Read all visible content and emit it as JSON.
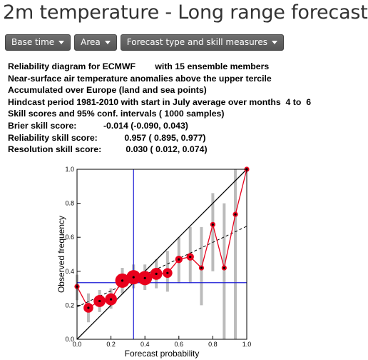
{
  "page": {
    "title": "2m temperature - Long range forecast"
  },
  "toolbar": {
    "items": [
      {
        "label": "Base time"
      },
      {
        "label": "Area"
      },
      {
        "label": "Forecast type and skill measures"
      }
    ]
  },
  "info": {
    "lines": [
      "Reliability diagram for ECMWF        with 15 ensemble members",
      "Near-surface air temperature anomalies above the upper tercile",
      "Accumulated over Europe (land and sea points)",
      "Hindcast period 1981-2010 with start in July average over months  4 to  6",
      "Skill scores and 95% conf. intervals ( 1000 samples)",
      "Brier skill score:           -0.014 (-0.090, 0.043)",
      "Reliability skill score:           0.957 ( 0.895, 0.977)",
      "Resolution skill score:          0.030 ( 0.012, 0.074)"
    ]
  },
  "chart_data": {
    "type": "scatter",
    "xlabel": "Forecast probability",
    "ylabel": "Observed frequency",
    "xlim": [
      0,
      1
    ],
    "ylim": [
      0,
      1
    ],
    "xticks": [
      "0.0",
      "0.2",
      "0.4",
      "0.6",
      "0.8",
      "1.0"
    ],
    "yticks": [
      "0.0",
      "0.2",
      "0.4",
      "0.6",
      "0.8",
      "1.0"
    ],
    "climatology": 0.333,
    "points": [
      {
        "x": 0.0,
        "y": 0.31,
        "lo": 0.23,
        "hi": 0.38,
        "n": 1
      },
      {
        "x": 0.067,
        "y": 0.185,
        "lo": 0.1,
        "hi": 0.27,
        "n": 3
      },
      {
        "x": 0.133,
        "y": 0.225,
        "lo": 0.16,
        "hi": 0.29,
        "n": 4
      },
      {
        "x": 0.2,
        "y": 0.235,
        "lo": 0.18,
        "hi": 0.3,
        "n": 4
      },
      {
        "x": 0.267,
        "y": 0.345,
        "lo": 0.27,
        "hi": 0.42,
        "n": 5
      },
      {
        "x": 0.333,
        "y": 0.365,
        "lo": 0.3,
        "hi": 0.44,
        "n": 5
      },
      {
        "x": 0.4,
        "y": 0.36,
        "lo": 0.29,
        "hi": 0.44,
        "n": 5
      },
      {
        "x": 0.467,
        "y": 0.385,
        "lo": 0.3,
        "hi": 0.47,
        "n": 4
      },
      {
        "x": 0.533,
        "y": 0.39,
        "lo": 0.28,
        "hi": 0.52,
        "n": 3
      },
      {
        "x": 0.6,
        "y": 0.47,
        "lo": 0.33,
        "hi": 0.6,
        "n": 2
      },
      {
        "x": 0.667,
        "y": 0.485,
        "lo": 0.33,
        "hi": 0.66,
        "n": 2
      },
      {
        "x": 0.733,
        "y": 0.42,
        "lo": 0.2,
        "hi": 0.66,
        "n": 1
      },
      {
        "x": 0.8,
        "y": 0.675,
        "lo": 0.4,
        "hi": 0.86,
        "n": 1
      },
      {
        "x": 0.867,
        "y": 0.42,
        "lo": 0.0,
        "hi": 0.8,
        "n": 1
      },
      {
        "x": 0.933,
        "y": 0.735,
        "lo": 0.0,
        "hi": 1.0,
        "n": 1
      },
      {
        "x": 1.0,
        "y": 1.0,
        "lo": 1.0,
        "hi": 1.0,
        "n": 1
      }
    ],
    "regression": {
      "x": [
        0.0,
        1.0
      ],
      "y": [
        0.19,
        0.665
      ]
    },
    "colors": {
      "reliability": "#e8001c",
      "perfect": "#000000",
      "climatology": "#1c1cd6",
      "error_bars": "#bbbbbb",
      "regression": "#000000"
    }
  }
}
